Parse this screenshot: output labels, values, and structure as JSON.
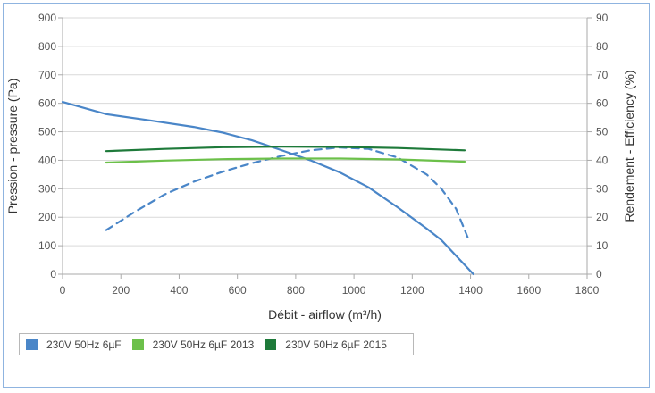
{
  "chart_data": {
    "type": "line",
    "xlabel": "Débit - airflow (m³/h)",
    "ylabel": "Pression - pressure (Pa)",
    "y2label": "Rendement - Efficiency (%)",
    "xlim": [
      0,
      1800
    ],
    "ylim": [
      0,
      900
    ],
    "y2lim": [
      0,
      90
    ],
    "xticks": [
      "0",
      "200",
      "400",
      "600",
      "800",
      "1000",
      "1200",
      "1400",
      "1600",
      "1800"
    ],
    "yticks": [
      "0",
      "100",
      "200",
      "300",
      "400",
      "500",
      "600",
      "700",
      "800",
      "900"
    ],
    "y2ticks": [
      "0",
      "10",
      "20",
      "30",
      "40",
      "50",
      "60",
      "70",
      "80",
      "90"
    ],
    "grid": true,
    "legend_position": "bottom-left",
    "series": [
      {
        "name": "230V 50Hz 6µF",
        "color": "#4a86c8",
        "axis": "left",
        "style": "solid",
        "points": [
          [
            0,
            605
          ],
          [
            150,
            562
          ],
          [
            300,
            540
          ],
          [
            450,
            517
          ],
          [
            550,
            497
          ],
          [
            650,
            470
          ],
          [
            750,
            436
          ],
          [
            850,
            400
          ],
          [
            950,
            358
          ],
          [
            1050,
            305
          ],
          [
            1150,
            235
          ],
          [
            1250,
            160
          ],
          [
            1300,
            120
          ],
          [
            1350,
            65
          ],
          [
            1410,
            0
          ]
        ]
      },
      {
        "name": "230V 50Hz 6µF",
        "color": "#4a86c8",
        "axis": "right",
        "style": "dashed",
        "points": [
          [
            150,
            15.5
          ],
          [
            250,
            22
          ],
          [
            350,
            28
          ],
          [
            450,
            32.5
          ],
          [
            550,
            36
          ],
          [
            650,
            39
          ],
          [
            750,
            41.5
          ],
          [
            850,
            43.5
          ],
          [
            950,
            44.5
          ],
          [
            1050,
            44
          ],
          [
            1150,
            41
          ],
          [
            1250,
            35
          ],
          [
            1300,
            30
          ],
          [
            1350,
            23
          ],
          [
            1390,
            13
          ]
        ]
      },
      {
        "name": "230V 50Hz 6µF 2013",
        "color": "#6cc04a",
        "axis": "left",
        "style": "solid",
        "points": [
          [
            150,
            392
          ],
          [
            350,
            399
          ],
          [
            550,
            404
          ],
          [
            750,
            406
          ],
          [
            950,
            406
          ],
          [
            1150,
            403
          ],
          [
            1380,
            395
          ]
        ]
      },
      {
        "name": "230V 50Hz 6µF 2015",
        "color": "#1e7a3a",
        "axis": "left",
        "style": "solid",
        "points": [
          [
            150,
            432
          ],
          [
            350,
            440
          ],
          [
            550,
            446
          ],
          [
            750,
            448
          ],
          [
            950,
            447
          ],
          [
            1150,
            443
          ],
          [
            1380,
            435
          ]
        ]
      }
    ]
  },
  "legend": [
    {
      "label": "230V 50Hz 6µF",
      "color": "#4a86c8"
    },
    {
      "label": "230V 50Hz 6µF 2013",
      "color": "#6cc04a"
    },
    {
      "label": "230V 50Hz 6µF 2015",
      "color": "#1e7a3a"
    }
  ]
}
